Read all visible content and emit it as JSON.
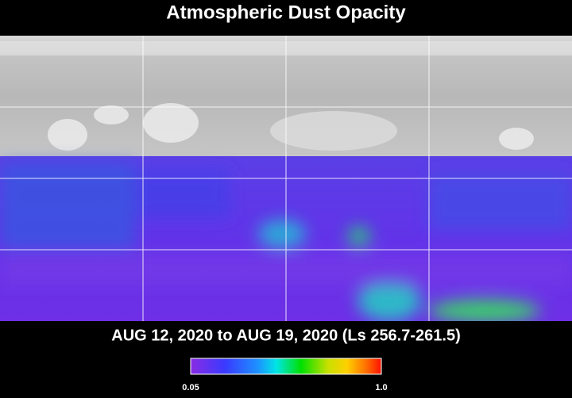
{
  "title": "Atmospheric Dust Opacity",
  "date_range": "AUG 12, 2020 to AUG 19, 2020 (Ls 256.7-261.5)",
  "colorbar": {
    "min_label": "0.05",
    "max_label": "1.0"
  }
}
